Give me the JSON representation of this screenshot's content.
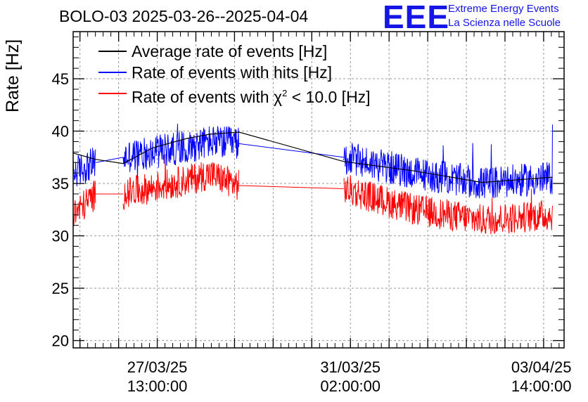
{
  "header": {
    "title": "BOLO-03 2025-03-26--2025-04-04",
    "logo_mark": "EEE",
    "logo_line1": "Extreme Energy Events",
    "logo_line2": "La Scienza nelle Scuole"
  },
  "legend": {
    "avg_label": "Average rate of events [Hz]",
    "hits_label": "Rate of events with hits [Hz]",
    "chi2_prefix": "Rate of events with χ",
    "chi2_sup": "2",
    "chi2_suffix": " < 10.0 [Hz]"
  },
  "colors": {
    "avg": "#000000",
    "hits": "#0000ff",
    "chi2": "#ff0000",
    "logo": "#1515e6"
  },
  "chart_data": {
    "type": "line",
    "title": "BOLO-03 2025-03-26--2025-04-04",
    "xlabel": "",
    "ylabel": "Rate [Hz]",
    "xlim": [
      0,
      216
    ],
    "ylim": [
      19.3,
      49.5
    ],
    "x_units": "hours since 2025-03-26 00:00",
    "yticks": [
      20,
      25,
      30,
      35,
      40,
      45
    ],
    "xtick_labels": [
      {
        "x": 37,
        "line1": "27/03/25",
        "line2": "13:00:00"
      },
      {
        "x": 122,
        "line1": "31/03/25",
        "line2": "02:00:00"
      },
      {
        "x": 206,
        "line1": "03/04/25",
        "line2": "14:00:00"
      }
    ],
    "grid": true,
    "legend_position": "top-left",
    "segments": [
      {
        "start": 0,
        "end": 10,
        "hits": 36.0,
        "chi2": 32.3,
        "avg": 37.6
      },
      {
        "start": 22,
        "end": 73,
        "hits": 38.3,
        "chi2": 34.8,
        "avg": 38.5
      },
      {
        "start": 119,
        "end": 211,
        "hits": 35.8,
        "chi2": 32.1,
        "avg": 35.9
      }
    ],
    "series": [
      {
        "name": "Average rate of events [Hz]",
        "x": [
          0,
          10,
          22,
          35,
          50,
          60,
          73,
          119,
          150,
          180,
          211
        ],
        "values": [
          37.9,
          37.3,
          36.9,
          38.4,
          39.3,
          39.7,
          39.9,
          37.1,
          36.2,
          35.1,
          35.6
        ]
      },
      {
        "name": "Rate of events with hits [Hz]",
        "x": [
          0,
          10,
          22,
          35,
          50,
          60,
          73,
          119,
          150,
          180,
          211
        ],
        "values": [
          36.0,
          37.0,
          37.5,
          38.0,
          38.5,
          39.0,
          38.8,
          37.5,
          36.0,
          35.0,
          35.5
        ]
      },
      {
        "name": "Rate of events with χ² < 10.0 [Hz]",
        "x": [
          0,
          10,
          22,
          35,
          50,
          60,
          73,
          119,
          150,
          180,
          211
        ],
        "values": [
          32.0,
          34.0,
          34.0,
          34.6,
          35.3,
          35.9,
          34.8,
          34.5,
          32.5,
          31.5,
          32.0
        ]
      }
    ]
  }
}
